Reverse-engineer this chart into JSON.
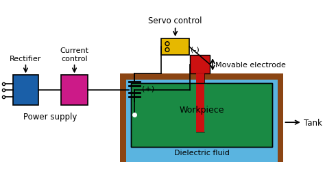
{
  "bg_color": "#ffffff",
  "colors": {
    "rectifier": "#1a5fa8",
    "current_control": "#cc1a88",
    "servo": "#e6b800",
    "electrode_body": "#cc1111",
    "tank_wall": "#8B4513",
    "dielectric": "#5ab4e0",
    "workpiece": "#1a8a44",
    "black": "#000000"
  },
  "labels": {
    "rectifier": "Rectifier",
    "current_control": "Current\ncontrol",
    "servo_control": "Servo control",
    "power_supply": "Power supply",
    "movable_electrode": "Movable electrode",
    "tank": "Tank",
    "workpiece": "Workpiece",
    "dielectric": "Dielectric fluid",
    "plus": "(+)",
    "minus": "(-)"
  }
}
